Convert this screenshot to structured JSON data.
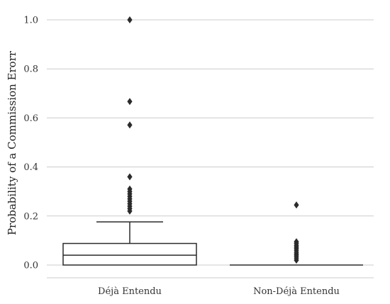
{
  "chart_data": {
    "type": "box",
    "ylabel": "Probability of a Commission Erorr",
    "xlabel": "",
    "ylim": [
      0.0,
      1.0
    ],
    "yticks": [
      0.0,
      0.2,
      0.4,
      0.6,
      0.8,
      1.0
    ],
    "ytick_labels": [
      "0.0",
      "0.2",
      "0.4",
      "0.6",
      "0.8",
      "1.0"
    ],
    "grid": "horizontal",
    "categories": [
      "Déjà Entendu",
      "Non-Déjà Entendu"
    ],
    "boxes": [
      {
        "category": "Déjà Entendu",
        "color": "#00a86b",
        "whislo": 0.0,
        "q1": 0.0,
        "median": 0.04,
        "q3": 0.088,
        "whishi": 0.176,
        "fliers": [
          1.0,
          0.667,
          0.571,
          0.36,
          0.31,
          0.3,
          0.29,
          0.28,
          0.27,
          0.26,
          0.25,
          0.24,
          0.23,
          0.22
        ]
      },
      {
        "category": "Non-Déjà Entendu",
        "color": "#00a86b",
        "whislo": 0.0,
        "q1": 0.0,
        "median": 0.0,
        "q3": 0.0,
        "whishi": 0.0,
        "fliers": [
          0.245,
          0.095,
          0.088,
          0.08,
          0.073,
          0.066,
          0.058,
          0.05,
          0.043,
          0.036,
          0.028,
          0.02
        ]
      }
    ]
  }
}
